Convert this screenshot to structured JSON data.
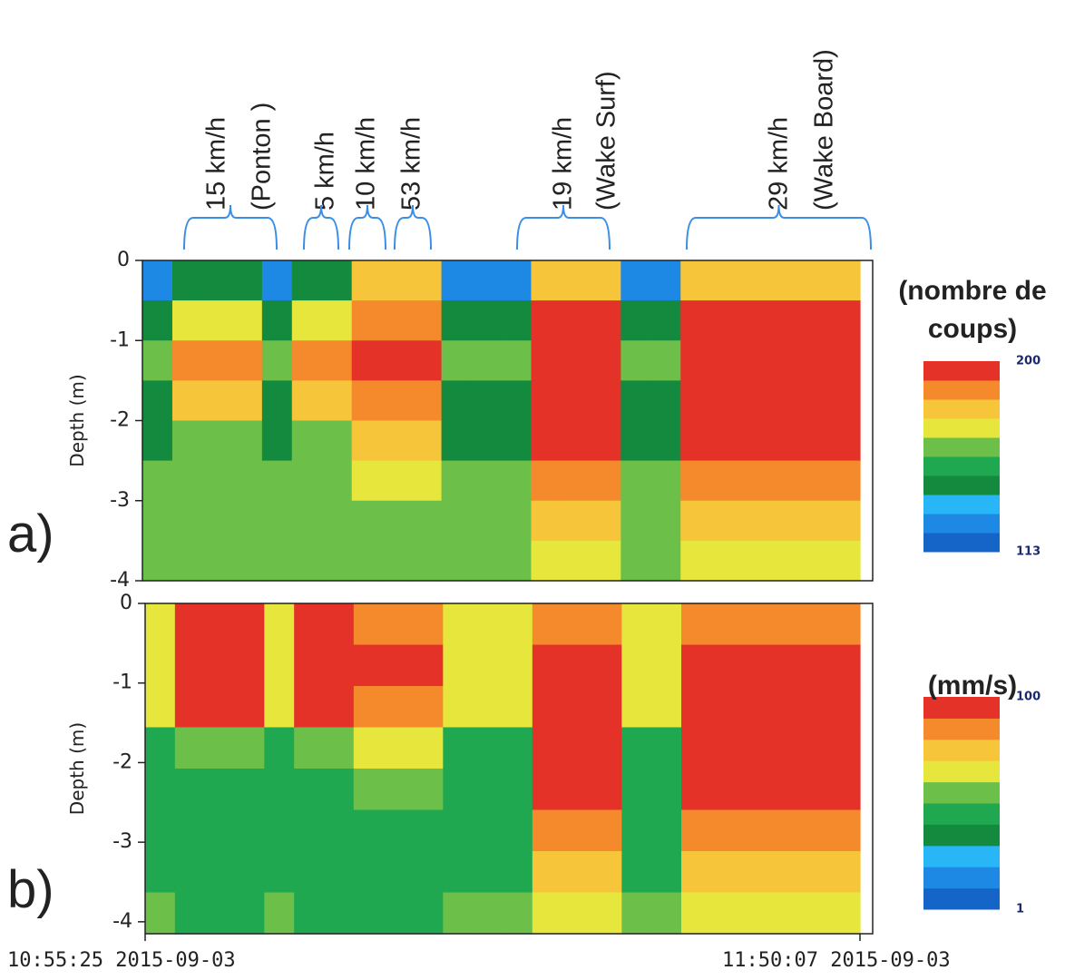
{
  "chart_data": [
    {
      "type": "heatmap",
      "panel_label": "a)",
      "ylabel": "Depth (m)",
      "ylim": [
        -4,
        0
      ],
      "yticks": [
        0,
        -1,
        -2,
        -3,
        -4
      ],
      "zlim": [
        113,
        200
      ],
      "zticks": [
        113,
        200
      ],
      "colorbar_title": [
        "(nombre de",
        "coups)"
      ],
      "colors": [
        "#1565c8",
        "#1e88e5",
        "#29b6f6",
        "#138a3e",
        "#1fa84f",
        "#6cc04a",
        "#e6e63c",
        "#f7c53a",
        "#f58a2c",
        "#e53228"
      ],
      "annotations": [
        {
          "lines": [
            "15 km/h",
            "(Ponton )"
          ]
        },
        {
          "lines": [
            "5 km/h"
          ]
        },
        {
          "lines": [
            "10 km/h"
          ]
        },
        {
          "lines": [
            "53 km/h"
          ]
        },
        {
          "lines": [
            "19 km/h",
            "(Wake Surf)"
          ]
        },
        {
          "lines": [
            "29 km/h",
            "(Wake Board)"
          ]
        }
      ],
      "z": [
        [
          125,
          145,
          145,
          145,
          125,
          145,
          145,
          178,
          178,
          178,
          125,
          125,
          125,
          180,
          180,
          180,
          125,
          125,
          180,
          180,
          180,
          180,
          180,
          180
        ],
        [
          145,
          170,
          170,
          170,
          145,
          170,
          170,
          190,
          190,
          190,
          145,
          145,
          145,
          195,
          195,
          195,
          145,
          145,
          195,
          195,
          195,
          195,
          195,
          195
        ],
        [
          160,
          185,
          185,
          185,
          160,
          185,
          185,
          195,
          195,
          195,
          160,
          160,
          160,
          198,
          198,
          198,
          160,
          160,
          198,
          198,
          198,
          198,
          198,
          198
        ],
        [
          145,
          175,
          175,
          175,
          145,
          175,
          175,
          186,
          186,
          186,
          145,
          145,
          145,
          195,
          195,
          195,
          145,
          145,
          195,
          195,
          195,
          195,
          195,
          195
        ],
        [
          145,
          160,
          160,
          160,
          145,
          160,
          160,
          176,
          176,
          176,
          145,
          145,
          145,
          192,
          192,
          192,
          145,
          145,
          192,
          192,
          192,
          192,
          192,
          192
        ],
        [
          160,
          160,
          160,
          160,
          160,
          160,
          160,
          168,
          168,
          168,
          160,
          160,
          160,
          186,
          186,
          186,
          160,
          160,
          186,
          186,
          186,
          186,
          186,
          186
        ],
        [
          160,
          160,
          160,
          160,
          160,
          160,
          160,
          162,
          162,
          162,
          160,
          160,
          160,
          178,
          178,
          178,
          160,
          160,
          178,
          178,
          178,
          178,
          178,
          178
        ],
        [
          162,
          162,
          162,
          162,
          162,
          162,
          162,
          165,
          165,
          165,
          162,
          162,
          162,
          172,
          172,
          172,
          162,
          162,
          172,
          172,
          172,
          172,
          172,
          172
        ]
      ]
    },
    {
      "type": "heatmap",
      "panel_label": "b)",
      "ylabel": "Depth (m)",
      "ylim": [
        -4.15,
        0
      ],
      "yticks": [
        0,
        -1,
        -2,
        -3,
        -4
      ],
      "zlim": [
        1,
        100
      ],
      "zticks": [
        1,
        100
      ],
      "colorbar_title": [
        "(mm/s)"
      ],
      "colors": [
        "#1565c8",
        "#1e88e5",
        "#29b6f6",
        "#138a3e",
        "#1fa84f",
        "#6cc04a",
        "#e6e63c",
        "#f7c53a",
        "#f58a2c",
        "#e53228"
      ],
      "x_labels": [
        "10:55:25 2015-09-03",
        "11:50:07 2015-09-03"
      ],
      "z": [
        [
          65,
          92,
          92,
          92,
          65,
          92,
          92,
          85,
          85,
          85,
          65,
          65,
          65,
          88,
          88,
          88,
          65,
          65,
          88,
          88,
          88,
          88,
          88,
          88
        ],
        [
          70,
          95,
          95,
          95,
          70,
          95,
          95,
          92,
          92,
          92,
          70,
          70,
          70,
          95,
          95,
          95,
          70,
          70,
          95,
          95,
          95,
          95,
          95,
          95
        ],
        [
          62,
          92,
          92,
          92,
          62,
          92,
          92,
          90,
          90,
          90,
          62,
          62,
          62,
          96,
          96,
          96,
          62,
          62,
          96,
          96,
          96,
          96,
          96,
          96
        ],
        [
          45,
          55,
          55,
          55,
          45,
          55,
          55,
          65,
          65,
          65,
          45,
          45,
          45,
          94,
          94,
          94,
          45,
          45,
          94,
          94,
          94,
          94,
          94,
          94
        ],
        [
          42,
          48,
          48,
          48,
          42,
          48,
          48,
          58,
          58,
          58,
          42,
          42,
          42,
          92,
          92,
          92,
          42,
          42,
          92,
          92,
          92,
          92,
          92,
          92
        ],
        [
          45,
          45,
          45,
          45,
          45,
          45,
          45,
          50,
          50,
          50,
          45,
          45,
          45,
          88,
          88,
          88,
          45,
          45,
          88,
          88,
          88,
          88,
          88,
          88
        ],
        [
          48,
          48,
          48,
          48,
          48,
          48,
          48,
          48,
          48,
          48,
          48,
          48,
          48,
          80,
          80,
          80,
          48,
          48,
          80,
          80,
          80,
          80,
          80,
          80
        ],
        [
          52,
          50,
          50,
          50,
          52,
          50,
          50,
          50,
          50,
          50,
          52,
          52,
          52,
          62,
          62,
          62,
          52,
          52,
          62,
          62,
          62,
          62,
          62,
          62
        ]
      ]
    }
  ]
}
